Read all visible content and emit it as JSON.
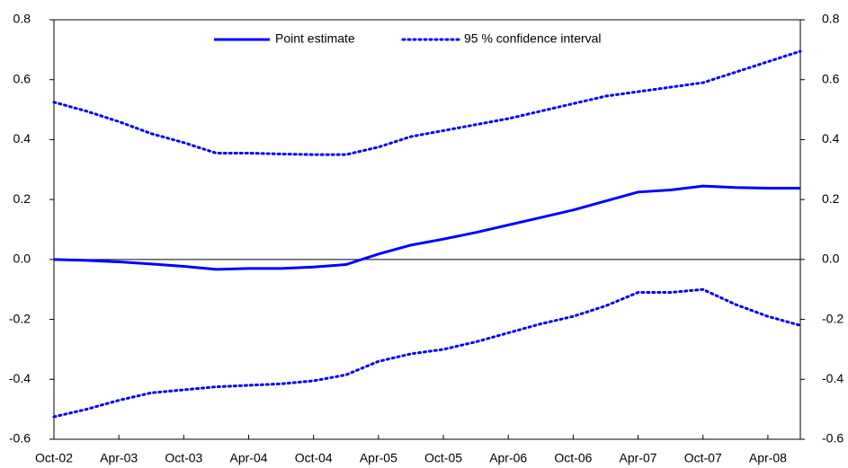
{
  "chart_data": {
    "type": "line",
    "categories": [
      "Oct-02",
      null,
      "Apr-03",
      null,
      "Oct-03",
      null,
      "Apr-04",
      null,
      "Oct-04",
      null,
      "Apr-05",
      null,
      "Oct-05",
      null,
      "Apr-06",
      null,
      "Oct-06",
      null,
      "Apr-07",
      null,
      "Oct-07",
      null,
      "Apr-08",
      null
    ],
    "series": [
      {
        "name": "Point estimate",
        "color": "#0000ff",
        "style": "solid",
        "values": [
          0.0,
          -0.003,
          -0.008,
          -0.015,
          -0.023,
          -0.033,
          -0.03,
          -0.03,
          -0.025,
          -0.017,
          0.018,
          0.048,
          0.068,
          0.09,
          0.115,
          0.14,
          0.165,
          0.195,
          0.225,
          0.232,
          0.245,
          0.24,
          0.238,
          0.238
        ]
      },
      {
        "name": "95 % confidence interval",
        "color": "#0000ff",
        "style": "dotted",
        "values": [
          0.525,
          0.495,
          0.46,
          0.42,
          0.39,
          0.355,
          0.355,
          0.352,
          0.35,
          0.35,
          0.375,
          0.41,
          0.43,
          0.45,
          0.47,
          0.495,
          0.52,
          0.545,
          0.56,
          0.575,
          0.59,
          0.625,
          0.66,
          0.695
        ],
        "lower": [
          -0.525,
          -0.5,
          -0.47,
          -0.445,
          -0.435,
          -0.425,
          -0.42,
          -0.415,
          -0.405,
          -0.385,
          -0.34,
          -0.315,
          -0.3,
          -0.275,
          -0.245,
          -0.215,
          -0.19,
          -0.155,
          -0.11,
          -0.11,
          -0.1,
          -0.15,
          -0.19,
          -0.22
        ]
      }
    ],
    "ylim": [
      -0.6,
      0.8
    ],
    "yticks": [
      -0.6,
      -0.4,
      -0.2,
      {
        "value": 0,
        "label": "0.0"
      },
      0.2,
      0.4,
      0.6,
      0.8
    ],
    "y2lim": [
      -0.6,
      0.8
    ],
    "y2ticks": [
      -0.6,
      -0.4,
      -0.2,
      {
        "value": 0,
        "label": "0.0"
      },
      0.2,
      0.4,
      0.6,
      0.8
    ],
    "legend": "top"
  }
}
